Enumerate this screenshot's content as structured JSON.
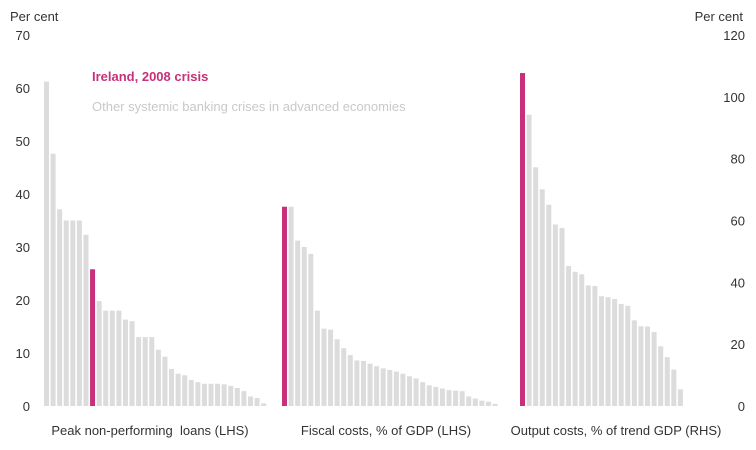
{
  "chart_data": {
    "type": "bar",
    "title": "",
    "left_axis": {
      "unit": "Per cent",
      "ticks": [
        0,
        10,
        20,
        30,
        40,
        50,
        60,
        70
      ],
      "ylim": [
        0,
        70
      ]
    },
    "right_axis": {
      "unit": "Per cent",
      "ticks": [
        0,
        20,
        40,
        60,
        80,
        100,
        120
      ],
      "ylim": [
        0,
        120
      ]
    },
    "legend": [
      {
        "label": "Ireland, 2008 crisis",
        "color": "#c7307a"
      },
      {
        "label": "Other systemic banking crises in advanced economies",
        "color": "#c9c9c9"
      }
    ],
    "colors": {
      "highlight": "#c7307a",
      "other": "#dcdcdc"
    },
    "groups": [
      {
        "label": "Peak non-performing  loans (LHS)",
        "axis": "left",
        "values": [
          61.2,
          47.6,
          37.1,
          35,
          35,
          35,
          32.3,
          25.8,
          19.8,
          18,
          18,
          18,
          16.3,
          16,
          13,
          13,
          13,
          10.6,
          9.3,
          7,
          6.1,
          5.8,
          4.9,
          4.5,
          4.2,
          4.2,
          4.2,
          4.1,
          3.8,
          3.4,
          2.8,
          1.8,
          1.5,
          0.5
        ],
        "highlight_index": 7
      },
      {
        "label": "Fiscal costs, % of GDP (LHS)",
        "axis": "left",
        "values": [
          37.6,
          37.6,
          31.2,
          30,
          28.7,
          18,
          14.6,
          14.4,
          12.6,
          10.9,
          9.6,
          8.6,
          8.5,
          8,
          7.5,
          7.1,
          6.8,
          6.5,
          6.1,
          5.6,
          5.2,
          4.5,
          3.9,
          3.6,
          3.3,
          3,
          2.9,
          2.8,
          1.8,
          1.4,
          1,
          0.8,
          0.4
        ],
        "highlight_index": 0
      },
      {
        "label": "Output costs, % of trend GDP (RHS)",
        "axis": "right",
        "values": [
          107.7,
          94.2,
          77.2,
          70.1,
          65.1,
          58.7,
          57.6,
          45.3,
          43.4,
          42.6,
          39,
          38.8,
          35.5,
          35.2,
          34.6,
          33,
          32.4,
          27.7,
          25.8,
          25.7,
          23.9,
          19.3,
          15.8,
          11.8,
          5.4
        ],
        "highlight_index": 0
      }
    ]
  }
}
